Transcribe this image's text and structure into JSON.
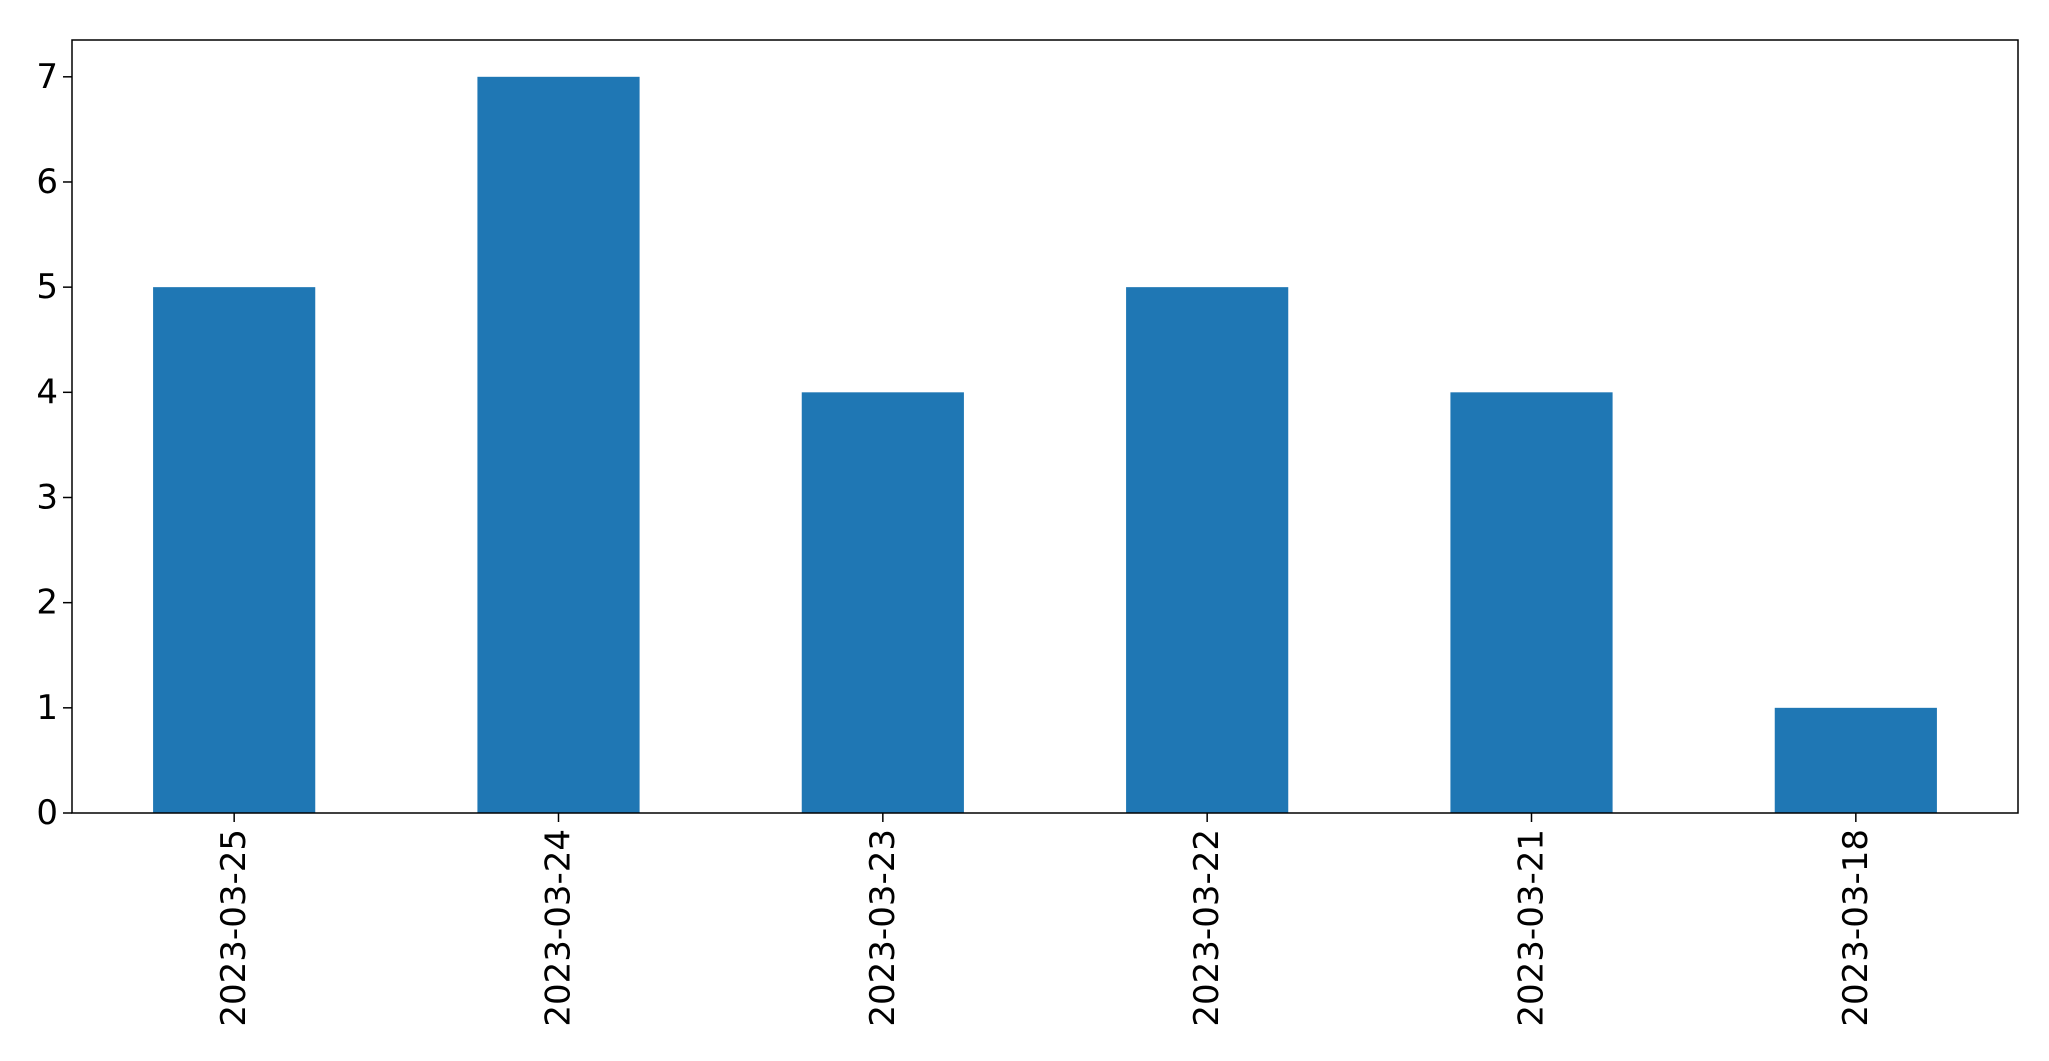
{
  "chart_data": {
    "type": "bar",
    "title": "",
    "xlabel": "",
    "ylabel": "",
    "categories": [
      "2023-03-25",
      "2023-03-24",
      "2023-03-23",
      "2023-03-22",
      "2023-03-21",
      "2023-03-18"
    ],
    "values": [
      5,
      7,
      4,
      5,
      4,
      1
    ],
    "ylim": [
      0,
      7.35
    ],
    "yticks": [
      "0",
      "1",
      "2",
      "3",
      "4",
      "5",
      "6",
      "7"
    ],
    "grid": false,
    "legend": "none",
    "bar_color": "#1f77b4",
    "axis_color": "#000000"
  }
}
